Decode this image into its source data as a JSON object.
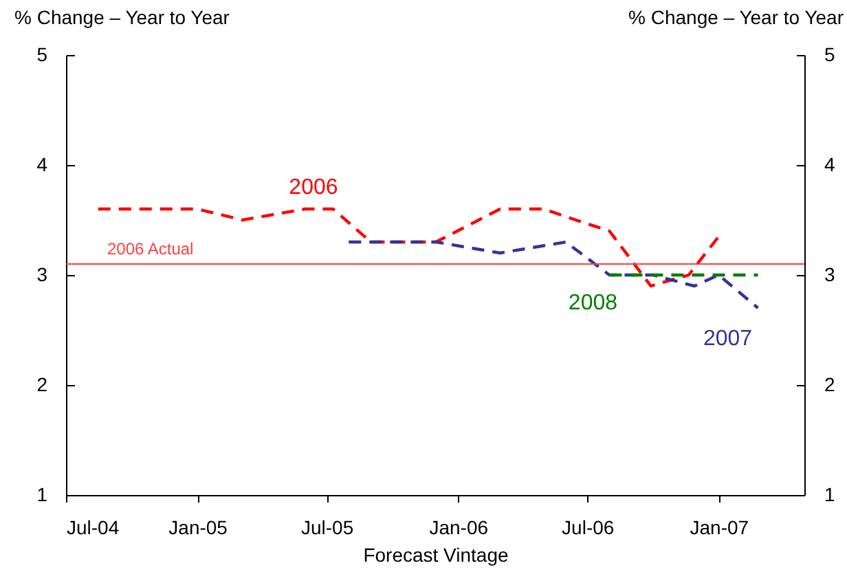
{
  "chart_data": {
    "type": "line",
    "xlabel": "Forecast Vintage",
    "ylabel": "% Change – Year to Year",
    "y2label": "% Change – Year to Year",
    "xlim": [
      "2004-07-01",
      "2007-05-01"
    ],
    "xticks": [
      {
        "value": "2004-07-01",
        "label": "Jul-04"
      },
      {
        "value": "2005-01-01",
        "label": "Jan-05"
      },
      {
        "value": "2005-07-01",
        "label": "Jul-05"
      },
      {
        "value": "2006-01-01",
        "label": "Jan-06"
      },
      {
        "value": "2006-07-01",
        "label": "Jul-06"
      },
      {
        "value": "2007-01-01",
        "label": "Jan-07"
      }
    ],
    "ylim": [
      1,
      5
    ],
    "yticks": [
      1,
      2,
      3,
      4,
      5
    ],
    "y2lim": [
      1,
      5
    ],
    "y2ticks": [
      1,
      2,
      3,
      4,
      5
    ],
    "grid": false,
    "legend": false,
    "line_style": "dashed",
    "marker": "none",
    "ref_lines": [
      {
        "axis": "y",
        "value": 3.1,
        "label": "2006 Actual",
        "color": "#ff4040"
      }
    ],
    "series": [
      {
        "name": "2006",
        "color": "#ff0000",
        "x": [
          "2004-08-15",
          "2005-01-01",
          "2005-03-05",
          "2005-06-01",
          "2005-07-10",
          "2005-09-01",
          "2005-12-01",
          "2006-03-01",
          "2006-05-01",
          "2006-06-15",
          "2006-08-01",
          "2006-09-28",
          "2006-11-20",
          "2007-01-01"
        ],
        "values": [
          3.6,
          3.6,
          3.5,
          3.6,
          3.6,
          3.3,
          3.3,
          3.6,
          3.6,
          3.5,
          3.4,
          2.9,
          3.0,
          3.35
        ]
      },
      {
        "name": "2007",
        "color": "#333399",
        "x": [
          "2005-08-01",
          "2005-12-01",
          "2006-03-01",
          "2006-06-01",
          "2006-08-01",
          "2006-10-01",
          "2006-11-28",
          "2007-01-01",
          "2007-02-25"
        ],
        "values": [
          3.3,
          3.3,
          3.2,
          3.3,
          3.0,
          3.0,
          2.9,
          3.0,
          2.7
        ]
      },
      {
        "name": "2008",
        "color": "#008000",
        "x": [
          "2006-08-01",
          "2007-02-25"
        ],
        "values": [
          3.0,
          3.0
        ]
      }
    ]
  }
}
